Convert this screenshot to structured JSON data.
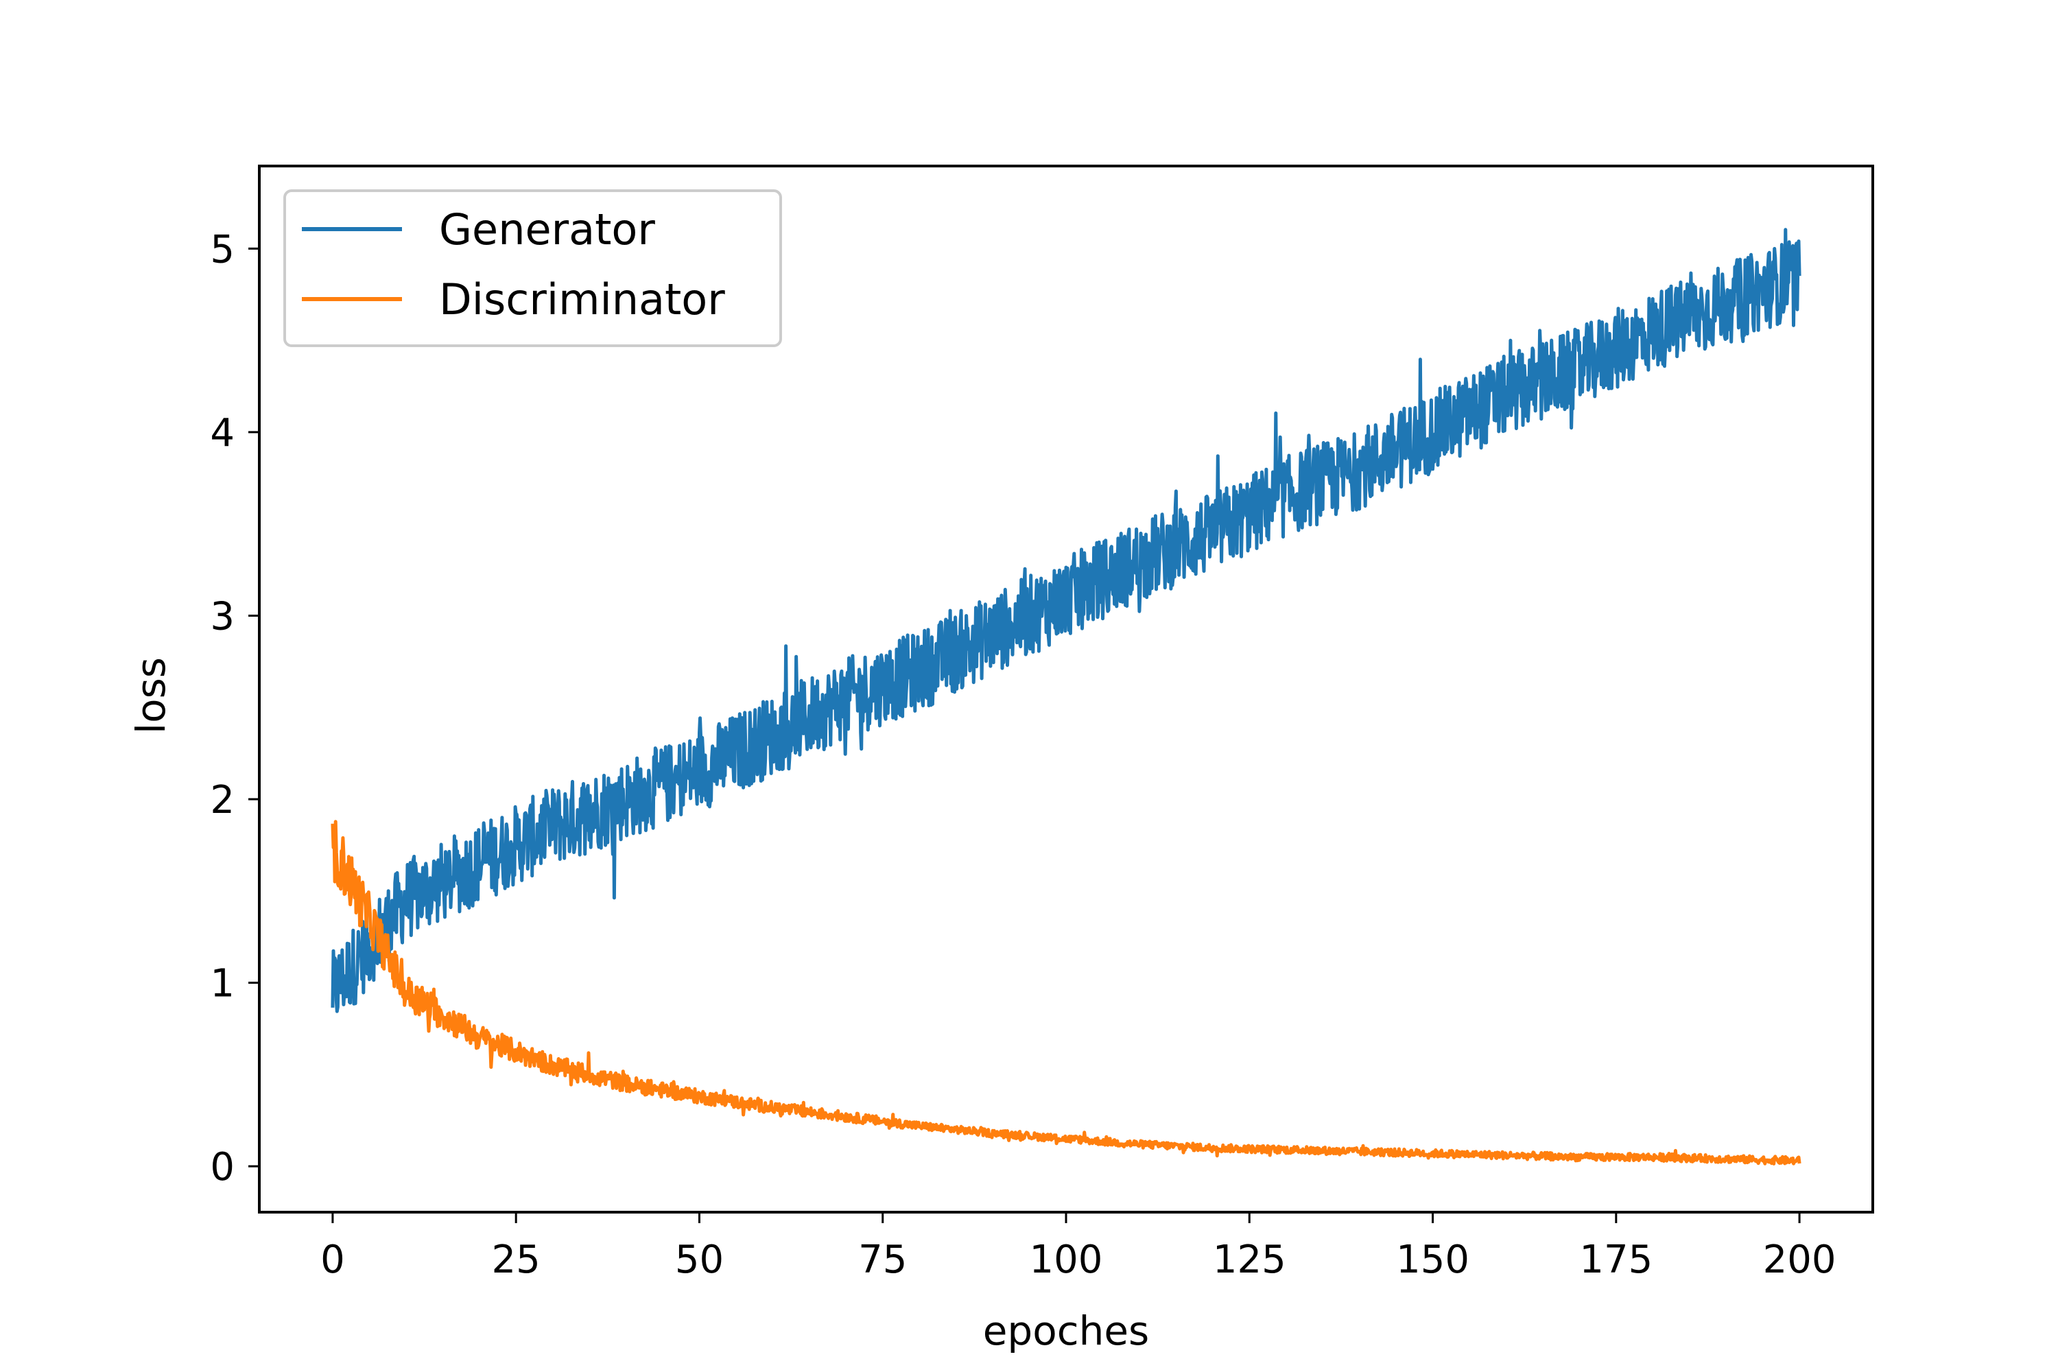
{
  "chart_data": {
    "type": "line",
    "title": "",
    "xlabel": "epoches",
    "ylabel": "loss",
    "xlim": [
      -10,
      210
    ],
    "ylim": [
      -0.25,
      5.45
    ],
    "xticks": [
      0,
      25,
      50,
      75,
      100,
      125,
      150,
      175,
      200
    ],
    "yticks": [
      0,
      1,
      2,
      3,
      4,
      5
    ],
    "grid": false,
    "legend_position": "upper-left",
    "x": [
      0,
      10,
      20,
      30,
      40,
      50,
      60,
      70,
      80,
      90,
      100,
      110,
      120,
      130,
      140,
      150,
      160,
      170,
      180,
      190,
      200
    ],
    "series": [
      {
        "name": "Generator",
        "color": "#1f77b4",
        "values": [
          0.95,
          1.45,
          1.65,
          1.85,
          2.0,
          2.15,
          2.35,
          2.55,
          2.7,
          2.9,
          3.1,
          3.3,
          3.45,
          3.65,
          3.8,
          4.0,
          4.2,
          4.35,
          4.55,
          4.7,
          4.85
        ],
        "noise": 0.22
      },
      {
        "name": "Discriminator",
        "color": "#ff7f0e",
        "values": [
          1.75,
          0.95,
          0.7,
          0.55,
          0.45,
          0.38,
          0.32,
          0.27,
          0.22,
          0.18,
          0.15,
          0.12,
          0.1,
          0.09,
          0.08,
          0.07,
          0.06,
          0.05,
          0.05,
          0.04,
          0.03
        ],
        "noise": 0.08
      }
    ]
  }
}
